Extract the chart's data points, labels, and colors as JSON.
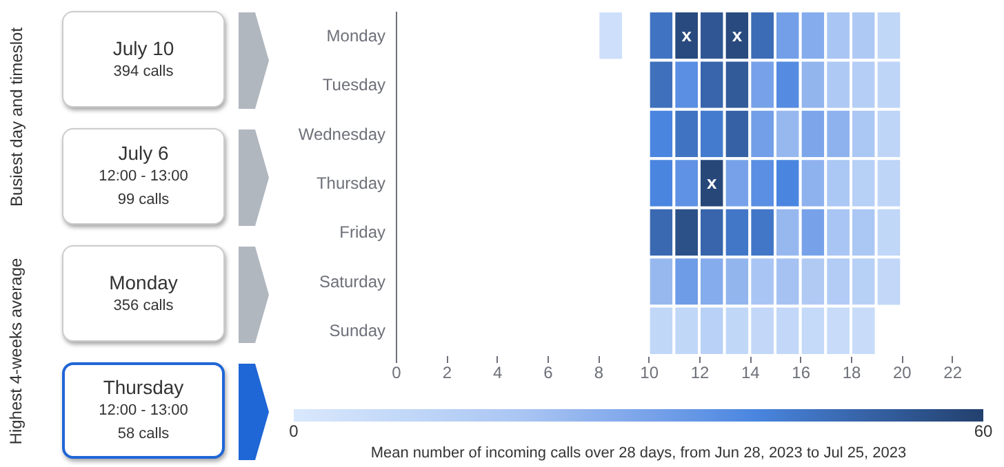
{
  "chart_data": [
    {
      "type": "other",
      "categories": [
        "Busiest day and timeslot",
        "Highest 4-weeks average"
      ],
      "annotations": [
        "July 10\n394 calls",
        "July 6\n12:00 - 13:00\n99 calls",
        "Monday\n356 calls",
        "Thursday\n12:00 - 13:00\n58 calls"
      ]
    },
    {
      "type": "heatmap",
      "x": [
        8.5,
        9.5,
        10.5,
        11.5,
        12.5,
        13.5,
        14.5,
        15.5,
        16.5,
        17.5,
        18.5,
        19.5
      ],
      "xlim": [
        0,
        24
      ],
      "xticks": [
        0,
        2,
        4,
        6,
        8,
        10,
        12,
        14,
        16,
        18,
        20,
        22
      ],
      "y_categories": [
        "Monday",
        "Tuesday",
        "Wednesday",
        "Thursday",
        "Friday",
        "Saturday",
        "Sunday"
      ],
      "cells": [
        [
          5,
          null,
          45,
          57,
          53,
          57,
          47,
          32,
          28,
          20,
          18,
          10
        ],
        [
          null,
          null,
          46,
          37,
          49,
          52,
          31,
          38,
          25,
          18,
          15,
          11
        ],
        [
          null,
          null,
          40,
          45,
          43,
          50,
          32,
          24,
          30,
          26,
          19,
          11
        ],
        [
          null,
          null,
          40,
          36,
          58,
          31,
          37,
          40,
          26,
          19,
          14,
          11
        ],
        [
          null,
          null,
          48,
          55,
          49,
          44,
          44,
          24,
          31,
          20,
          19,
          10
        ],
        [
          null,
          null,
          24,
          33,
          28,
          25,
          20,
          21,
          17,
          16,
          14,
          9
        ],
        [
          null,
          null,
          10,
          10,
          13,
          10,
          9,
          9,
          8,
          7,
          7,
          null
        ]
      ],
      "cell_labels": [
        [
          null,
          null,
          null,
          "x",
          null,
          "x",
          null,
          null,
          null,
          null,
          null,
          null
        ],
        [
          null,
          null,
          null,
          null,
          null,
          null,
          null,
          null,
          null,
          null,
          null,
          null
        ],
        [
          null,
          null,
          null,
          null,
          null,
          null,
          null,
          null,
          null,
          null,
          null,
          null
        ],
        [
          null,
          null,
          null,
          null,
          "x",
          null,
          null,
          null,
          null,
          null,
          null,
          null
        ],
        [
          null,
          null,
          null,
          null,
          null,
          null,
          null,
          null,
          null,
          null,
          null,
          null
        ],
        [
          null,
          null,
          null,
          null,
          null,
          null,
          null,
          null,
          null,
          null,
          null,
          null
        ],
        [
          null,
          null,
          null,
          null,
          null,
          null,
          null,
          null,
          null,
          null,
          null,
          null
        ]
      ],
      "colors": [
        "#d9e8fc",
        "#a9c5f3",
        "#4a86e0",
        "#23406e"
      ],
      "clim": [
        0,
        60
      ],
      "cticks": [
        0,
        60
      ],
      "clabel": "Mean number of incoming calls over 28 days, from Jun 28, 2023 to Jul 25, 2023"
    }
  ]
}
